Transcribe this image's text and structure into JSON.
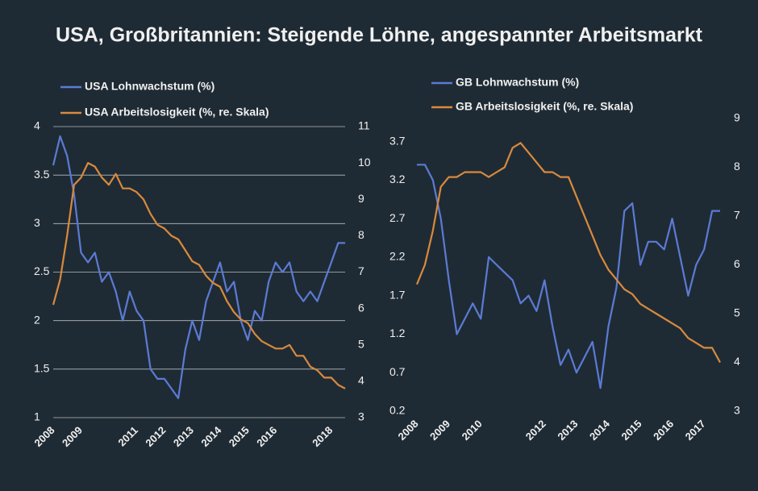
{
  "title": "USA, Großbritannien: Steigende Löhne, angespannter Arbeitsmarkt",
  "chart_data": [
    {
      "type": "line",
      "x": [
        2008,
        2008.25,
        2008.5,
        2008.75,
        2009,
        2009.25,
        2009.5,
        2009.75,
        2010,
        2010.25,
        2010.5,
        2010.75,
        2011,
        2011.25,
        2011.5,
        2011.75,
        2012,
        2012.25,
        2012.5,
        2012.75,
        2013,
        2013.25,
        2013.5,
        2013.75,
        2014,
        2014.25,
        2014.5,
        2014.75,
        2015,
        2015.25,
        2015.5,
        2015.75,
        2016,
        2016.25,
        2016.5,
        2016.75,
        2017,
        2017.25,
        2017.5,
        2017.75,
        2018,
        2018.25,
        2018.5
      ],
      "xlim": [
        2008,
        2018.5
      ],
      "xticks": [
        2008,
        2009,
        2011,
        2012,
        2013,
        2014,
        2015,
        2016,
        2018
      ],
      "ylim": [
        1,
        4
      ],
      "yticks": [
        1,
        1.5,
        2,
        2.5,
        3,
        3.5,
        4
      ],
      "y2lim": [
        3,
        11
      ],
      "y2ticks": [
        3,
        4,
        5,
        6,
        7,
        8,
        9,
        10,
        11
      ],
      "grid": true,
      "series": [
        {
          "name": "USA Lohnwachstum (%)",
          "color": "#5b7bd5",
          "values": [
            3.6,
            3.9,
            3.7,
            3.3,
            2.7,
            2.6,
            2.7,
            2.4,
            2.5,
            2.3,
            2.0,
            2.3,
            2.1,
            2.0,
            1.5,
            1.4,
            1.4,
            1.3,
            1.2,
            1.7,
            2.0,
            1.8,
            2.2,
            2.4,
            2.6,
            2.3,
            2.4,
            2.0,
            1.8,
            2.1,
            2.0,
            2.4,
            2.6,
            2.5,
            2.6,
            2.3,
            2.2,
            2.3,
            2.2,
            2.4,
            2.6,
            2.8,
            2.8
          ]
        },
        {
          "name": "USA Arbeitslosigkeit (%, re. Skala)",
          "color": "#d98a3d",
          "axis": "y2",
          "values": [
            6.1,
            6.8,
            8.0,
            9.4,
            9.6,
            10.0,
            9.9,
            9.6,
            9.4,
            9.7,
            9.3,
            9.3,
            9.2,
            9.0,
            8.6,
            8.3,
            8.2,
            8.0,
            7.9,
            7.6,
            7.3,
            7.2,
            6.9,
            6.7,
            6.6,
            6.2,
            5.9,
            5.7,
            5.6,
            5.3,
            5.1,
            5.0,
            4.9,
            4.9,
            5.0,
            4.7,
            4.7,
            4.4,
            4.3,
            4.1,
            4.1,
            3.9,
            3.8
          ]
        }
      ]
    },
    {
      "type": "line",
      "x": [
        2008,
        2008.25,
        2008.5,
        2008.75,
        2009,
        2009.25,
        2009.5,
        2009.75,
        2010,
        2010.25,
        2010.5,
        2010.75,
        2011,
        2011.25,
        2011.5,
        2011.75,
        2012,
        2012.25,
        2012.5,
        2012.75,
        2013,
        2013.25,
        2013.5,
        2013.75,
        2014,
        2014.25,
        2014.5,
        2014.75,
        2015,
        2015.25,
        2015.5,
        2015.75,
        2016,
        2016.25,
        2016.5,
        2016.75,
        2017,
        2017.25,
        2017.5
      ],
      "xlim": [
        2008,
        2017.5
      ],
      "xticks": [
        2008,
        2009,
        2010,
        2012,
        2013,
        2014,
        2015,
        2016,
        2017
      ],
      "ylim": [
        0.2,
        4.0
      ],
      "yticks": [
        0.2,
        0.7,
        1.2,
        1.7,
        2.2,
        2.7,
        3.2,
        3.7
      ],
      "y2lim": [
        3,
        9
      ],
      "y2ticks": [
        3,
        4,
        5,
        6,
        7,
        8,
        9
      ],
      "grid": false,
      "series": [
        {
          "name": "GB Lohnwachstum (%)",
          "color": "#5b7bd5",
          "values": [
            3.4,
            3.4,
            3.2,
            2.7,
            1.9,
            1.2,
            1.4,
            1.6,
            1.4,
            2.2,
            2.1,
            2.0,
            1.9,
            1.6,
            1.7,
            1.5,
            1.9,
            1.3,
            0.8,
            1.0,
            0.7,
            0.9,
            1.1,
            0.5,
            1.3,
            1.8,
            2.8,
            2.9,
            2.1,
            2.4,
            2.4,
            2.3,
            2.7,
            2.2,
            1.7,
            2.1,
            2.3,
            2.8,
            2.8
          ]
        },
        {
          "name": "GB Arbeitslosigkeit (%, re. Skala)",
          "color": "#d98a3d",
          "axis": "y2",
          "values": [
            5.6,
            6.0,
            6.7,
            7.6,
            7.8,
            7.8,
            7.9,
            7.9,
            7.9,
            7.8,
            7.9,
            8.0,
            8.4,
            8.5,
            8.3,
            8.1,
            7.9,
            7.9,
            7.8,
            7.8,
            7.4,
            7.0,
            6.6,
            6.2,
            5.9,
            5.7,
            5.5,
            5.4,
            5.2,
            5.1,
            5.0,
            4.9,
            4.8,
            4.7,
            4.5,
            4.4,
            4.3,
            4.3,
            4.0
          ]
        }
      ]
    }
  ]
}
